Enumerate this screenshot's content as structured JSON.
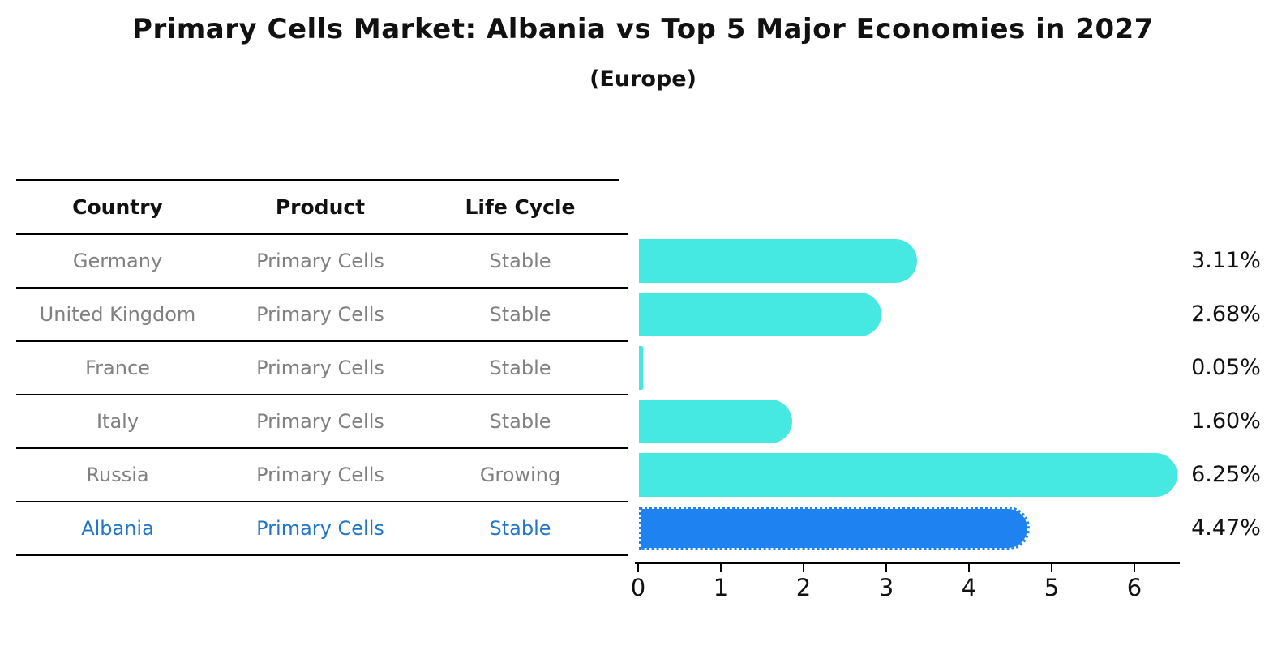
{
  "title": "Primary Cells Market: Albania vs Top 5 Major Economies in 2027",
  "subtitle": "(Europe)",
  "table": {
    "headers": [
      "Country",
      "Product",
      "Life Cycle"
    ],
    "rows": [
      {
        "country": "Germany",
        "product": "Primary Cells",
        "life_cycle": "Stable",
        "highlight": false
      },
      {
        "country": "United Kingdom",
        "product": "Primary Cells",
        "life_cycle": "Stable",
        "highlight": false
      },
      {
        "country": "France",
        "product": "Primary Cells",
        "life_cycle": "Stable",
        "highlight": false
      },
      {
        "country": "Italy",
        "product": "Primary Cells",
        "life_cycle": "Stable",
        "highlight": false
      },
      {
        "country": "Russia",
        "product": "Primary Cells",
        "life_cycle": "Growing",
        "highlight": false
      },
      {
        "country": "Albania",
        "product": "Primary Cells",
        "life_cycle": "Stable",
        "highlight": true
      }
    ]
  },
  "chart_data": {
    "type": "bar",
    "orientation": "horizontal",
    "title": "Primary Cells Market: Albania vs Top 5 Major Economies in 2027 (Europe)",
    "categories": [
      "Germany",
      "United Kingdom",
      "France",
      "Italy",
      "Russia",
      "Albania"
    ],
    "values": [
      3.11,
      2.68,
      0.05,
      1.6,
      6.25,
      4.47
    ],
    "value_labels": [
      "3.11%",
      "2.68%",
      "0.05%",
      "1.60%",
      "6.25%",
      "4.47%"
    ],
    "x_ticks": [
      "0",
      "1",
      "2",
      "3",
      "4",
      "5",
      "6"
    ],
    "xlim": [
      0,
      6.55
    ],
    "xlabel": "",
    "ylabel": "",
    "grid": false,
    "legend": "none",
    "highlight_index": 5
  },
  "colors": {
    "bar": "#45E9E2",
    "highlight_bar": "#1E82F0",
    "highlight_text": "#2176C7",
    "row_text": "#808080",
    "header_text": "#111111",
    "axis": "#000000"
  }
}
